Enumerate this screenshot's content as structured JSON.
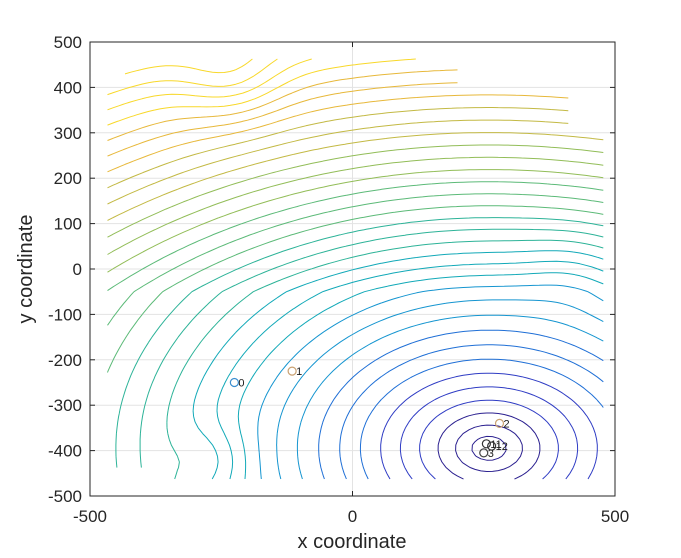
{
  "chart_data": {
    "type": "contour",
    "xlabel": "x coordinate",
    "ylabel": "y coordinate",
    "xlim": [
      -500,
      500
    ],
    "ylim": [
      -500,
      500
    ],
    "xticks": [
      "-500",
      "0",
      "500"
    ],
    "yticks": [
      "500",
      "400",
      "300",
      "200",
      "100",
      "0",
      "-100",
      "-200",
      "-300",
      "-400",
      "-500"
    ],
    "grid": true,
    "points": [
      {
        "label": "0",
        "x": -225,
        "y": -250,
        "color": "#3c8fd0"
      },
      {
        "label": "1",
        "x": -115,
        "y": -225,
        "color": "#c9a070"
      },
      {
        "label": "2",
        "x": 280,
        "y": -340,
        "color": "#c9a070"
      },
      {
        "label": "3",
        "x": 250,
        "y": -405,
        "color": "#444444"
      },
      {
        "label": "11",
        "x": 255,
        "y": -385,
        "color": "#333333"
      },
      {
        "label": "12",
        "x": 265,
        "y": -390,
        "color": "#333333"
      }
    ],
    "contour_minimum": {
      "x": 260,
      "y": -395
    },
    "contour_colors": [
      "#2a1f8f",
      "#2f3cc4",
      "#1f6fd6",
      "#1595d0",
      "#12a9b8",
      "#2db398",
      "#5cba78",
      "#92bd58",
      "#c3b944",
      "#e7b83a",
      "#f8d82a"
    ]
  }
}
